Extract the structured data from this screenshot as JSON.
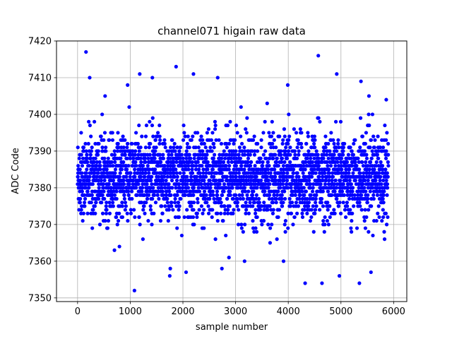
{
  "chart_data": {
    "type": "scatter",
    "title": "channel071 higain raw data",
    "xlabel": "sample number",
    "ylabel": "ADC Code",
    "xlim": [
      -400,
      6250
    ],
    "ylim": [
      7349,
      7420
    ],
    "xticks": [
      0,
      1000,
      2000,
      3000,
      4000,
      5000,
      6000
    ],
    "yticks": [
      7350,
      7360,
      7370,
      7380,
      7390,
      7400,
      7410,
      7420
    ],
    "grid": true,
    "marker_color": "#0000ff",
    "n_samples": 5900,
    "band": {
      "center": 7383,
      "typical_range": [
        7370,
        7398
      ]
    },
    "outliers": [
      [
        160,
        7417
      ],
      [
        230,
        7410
      ],
      [
        1080,
        7352
      ],
      [
        1180,
        7411
      ],
      [
        1420,
        7410
      ],
      [
        1870,
        7413
      ],
      [
        1750,
        7356
      ],
      [
        2060,
        7357
      ],
      [
        2200,
        7411
      ],
      [
        2740,
        7358
      ],
      [
        3170,
        7360
      ],
      [
        4320,
        7354
      ],
      [
        4570,
        7416
      ],
      [
        4640,
        7354
      ],
      [
        4920,
        7411
      ],
      [
        4970,
        7356
      ],
      [
        5350,
        7354
      ],
      [
        5380,
        7409
      ],
      [
        5570,
        7357
      ],
      [
        5860,
        7404
      ],
      [
        950,
        7408
      ],
      [
        3990,
        7408
      ],
      [
        2660,
        7410
      ],
      [
        1760,
        7358
      ],
      [
        3910,
        7360
      ]
    ]
  }
}
